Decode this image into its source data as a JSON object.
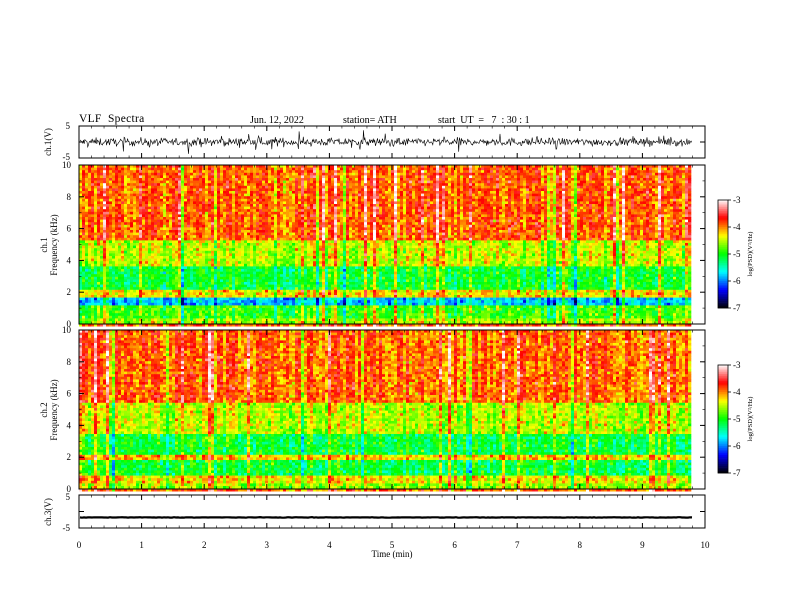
{
  "header": {
    "title": "VLF  Spectra",
    "date": "Jun. 12, 2022",
    "station": "station= ATH",
    "start": "start  UT  =   7  : 30 : 1"
  },
  "chart_data": {
    "type": "heatmap",
    "x_axis": {
      "label": "Time  (min)",
      "range": [
        0,
        10
      ],
      "ticks": [
        0,
        1,
        2,
        3,
        4,
        5,
        6,
        7,
        8,
        9,
        10
      ],
      "tick_labels": [
        "0",
        "1",
        "2",
        "3",
        "4",
        "5",
        "6",
        "7",
        "8",
        "9",
        "10"
      ],
      "data_end": 9.8
    },
    "panels": [
      {
        "id": "ch1-waveform",
        "type": "line",
        "ylabel": "ch.1(V)",
        "ylim": [
          -5,
          5
        ],
        "tick_labels": [
          "5",
          "-5"
        ]
      },
      {
        "id": "ch1-spectrogram",
        "type": "heatmap",
        "ylabel": "ch.1\nFrequency  (kHz)",
        "ylabel_lines": [
          "ch.1",
          "Frequency  (kHz)"
        ],
        "ylim": [
          0,
          10
        ],
        "yticks": [
          0,
          2,
          4,
          6,
          8,
          10
        ],
        "tick_labels": [
          "0",
          "2",
          "4",
          "6",
          "8",
          "10"
        ],
        "bands": [
          {
            "from": 0.0,
            "to": 0.35,
            "level": -4.6
          },
          {
            "from": 0.35,
            "to": 1.1,
            "level": -4.9
          },
          {
            "from": 1.1,
            "to": 1.7,
            "level": -5.8
          },
          {
            "from": 1.7,
            "to": 2.1,
            "level": -4.3
          },
          {
            "from": 2.1,
            "to": 3.6,
            "level": -5.1
          },
          {
            "from": 3.6,
            "to": 5.2,
            "level": -4.5
          },
          {
            "from": 5.2,
            "to": 10.0,
            "level": -3.9
          }
        ],
        "colorbar": {
          "label": "log(PSD)(V²/Hz)",
          "range": [
            -7,
            -3
          ],
          "ticks": [
            "-3",
            "-4",
            "-5",
            "-6",
            "-7"
          ]
        }
      },
      {
        "id": "ch2-spectrogram",
        "type": "heatmap",
        "ylabel": "ch.2\nFrequency  (kHz)",
        "ylabel_lines": [
          "ch.2",
          "Frequency  (kHz)"
        ],
        "ylim": [
          0,
          10
        ],
        "yticks": [
          0,
          2,
          4,
          6,
          8,
          10
        ],
        "tick_labels": [
          "0",
          "2",
          "4",
          "6",
          "8",
          "10"
        ],
        "bands": [
          {
            "from": 0.0,
            "to": 0.4,
            "level": -4.6
          },
          {
            "from": 0.4,
            "to": 0.9,
            "level": -4.3
          },
          {
            "from": 0.9,
            "to": 1.9,
            "level": -5.1
          },
          {
            "from": 1.9,
            "to": 2.2,
            "level": -4.2
          },
          {
            "from": 2.2,
            "to": 3.5,
            "level": -5.1
          },
          {
            "from": 3.5,
            "to": 5.4,
            "level": -4.5
          },
          {
            "from": 5.4,
            "to": 10.0,
            "level": -3.9
          }
        ],
        "colorbar": {
          "label": "log(PSD)(V²/Hz)",
          "range": [
            -7,
            -3
          ],
          "ticks": [
            "-3",
            "-4",
            "-5",
            "-6",
            "-7"
          ]
        }
      },
      {
        "id": "ch3-waveform",
        "type": "line",
        "ylabel": "ch.3(V)",
        "ylim": [
          -5,
          5
        ],
        "tick_labels": [
          "5",
          "-5"
        ],
        "level": -1.8
      }
    ],
    "colormap": [
      "#000000",
      "#0000ff",
      "#00ffff",
      "#00ff00",
      "#ffff00",
      "#ff0000",
      "#ffffff"
    ]
  }
}
